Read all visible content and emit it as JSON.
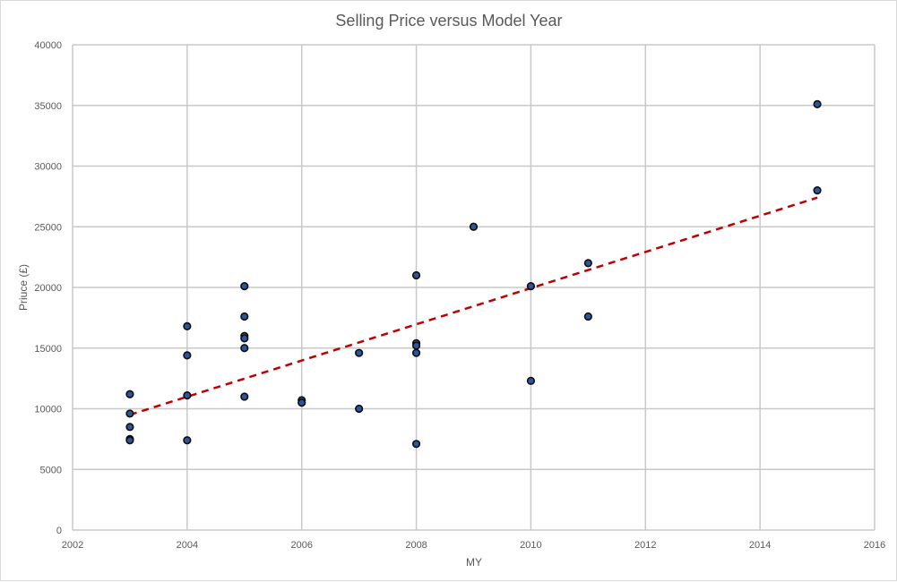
{
  "chart_data": {
    "type": "scatter",
    "title": "Selling Price versus Model Year",
    "xlabel": "MY",
    "ylabel": "Priuce (£)",
    "xlim": [
      2002,
      2016
    ],
    "ylim": [
      0,
      40000
    ],
    "x_ticks": [
      "2002",
      "2004",
      "2006",
      "2008",
      "2010",
      "2012",
      "2014",
      "2016"
    ],
    "y_ticks": [
      "0",
      "5000",
      "10000",
      "15000",
      "20000",
      "25000",
      "30000",
      "35000",
      "40000"
    ],
    "x_tick_values": [
      2002,
      2004,
      2006,
      2008,
      2010,
      2012,
      2014,
      2016
    ],
    "y_tick_values": [
      0,
      5000,
      10000,
      15000,
      20000,
      25000,
      30000,
      35000,
      40000
    ],
    "grid": true,
    "series": [
      {
        "points": [
          [
            2003,
            11200
          ],
          [
            2003,
            9600
          ],
          [
            2003,
            8500
          ],
          [
            2003,
            7500
          ],
          [
            2003,
            7400
          ],
          [
            2004,
            16800
          ],
          [
            2004,
            14400
          ],
          [
            2004,
            11100
          ],
          [
            2004,
            7400
          ],
          [
            2005,
            20100
          ],
          [
            2005,
            17600
          ],
          [
            2005,
            16000
          ],
          [
            2005,
            15800
          ],
          [
            2005,
            15000
          ],
          [
            2005,
            11000
          ],
          [
            2006,
            10700
          ],
          [
            2006,
            10500
          ],
          [
            2007,
            14600
          ],
          [
            2007,
            10000
          ],
          [
            2008,
            21000
          ],
          [
            2008,
            15400
          ],
          [
            2008,
            15200
          ],
          [
            2008,
            14600
          ],
          [
            2008,
            7100
          ],
          [
            2009,
            25000
          ],
          [
            2010,
            20100
          ],
          [
            2010,
            12300
          ],
          [
            2011,
            22000
          ],
          [
            2011,
            17600
          ],
          [
            2015,
            35100
          ],
          [
            2015,
            28000
          ]
        ],
        "marker_fill": "#2f5597",
        "marker_stroke": "#0d0d0d"
      }
    ],
    "trendline": {
      "type": "linear",
      "x": [
        2003,
        2015
      ],
      "y": [
        9500,
        27400
      ],
      "color": "#c00000",
      "style": "dashed"
    },
    "colors": {
      "grid": "#c8c8c8",
      "text": "#595959"
    }
  }
}
